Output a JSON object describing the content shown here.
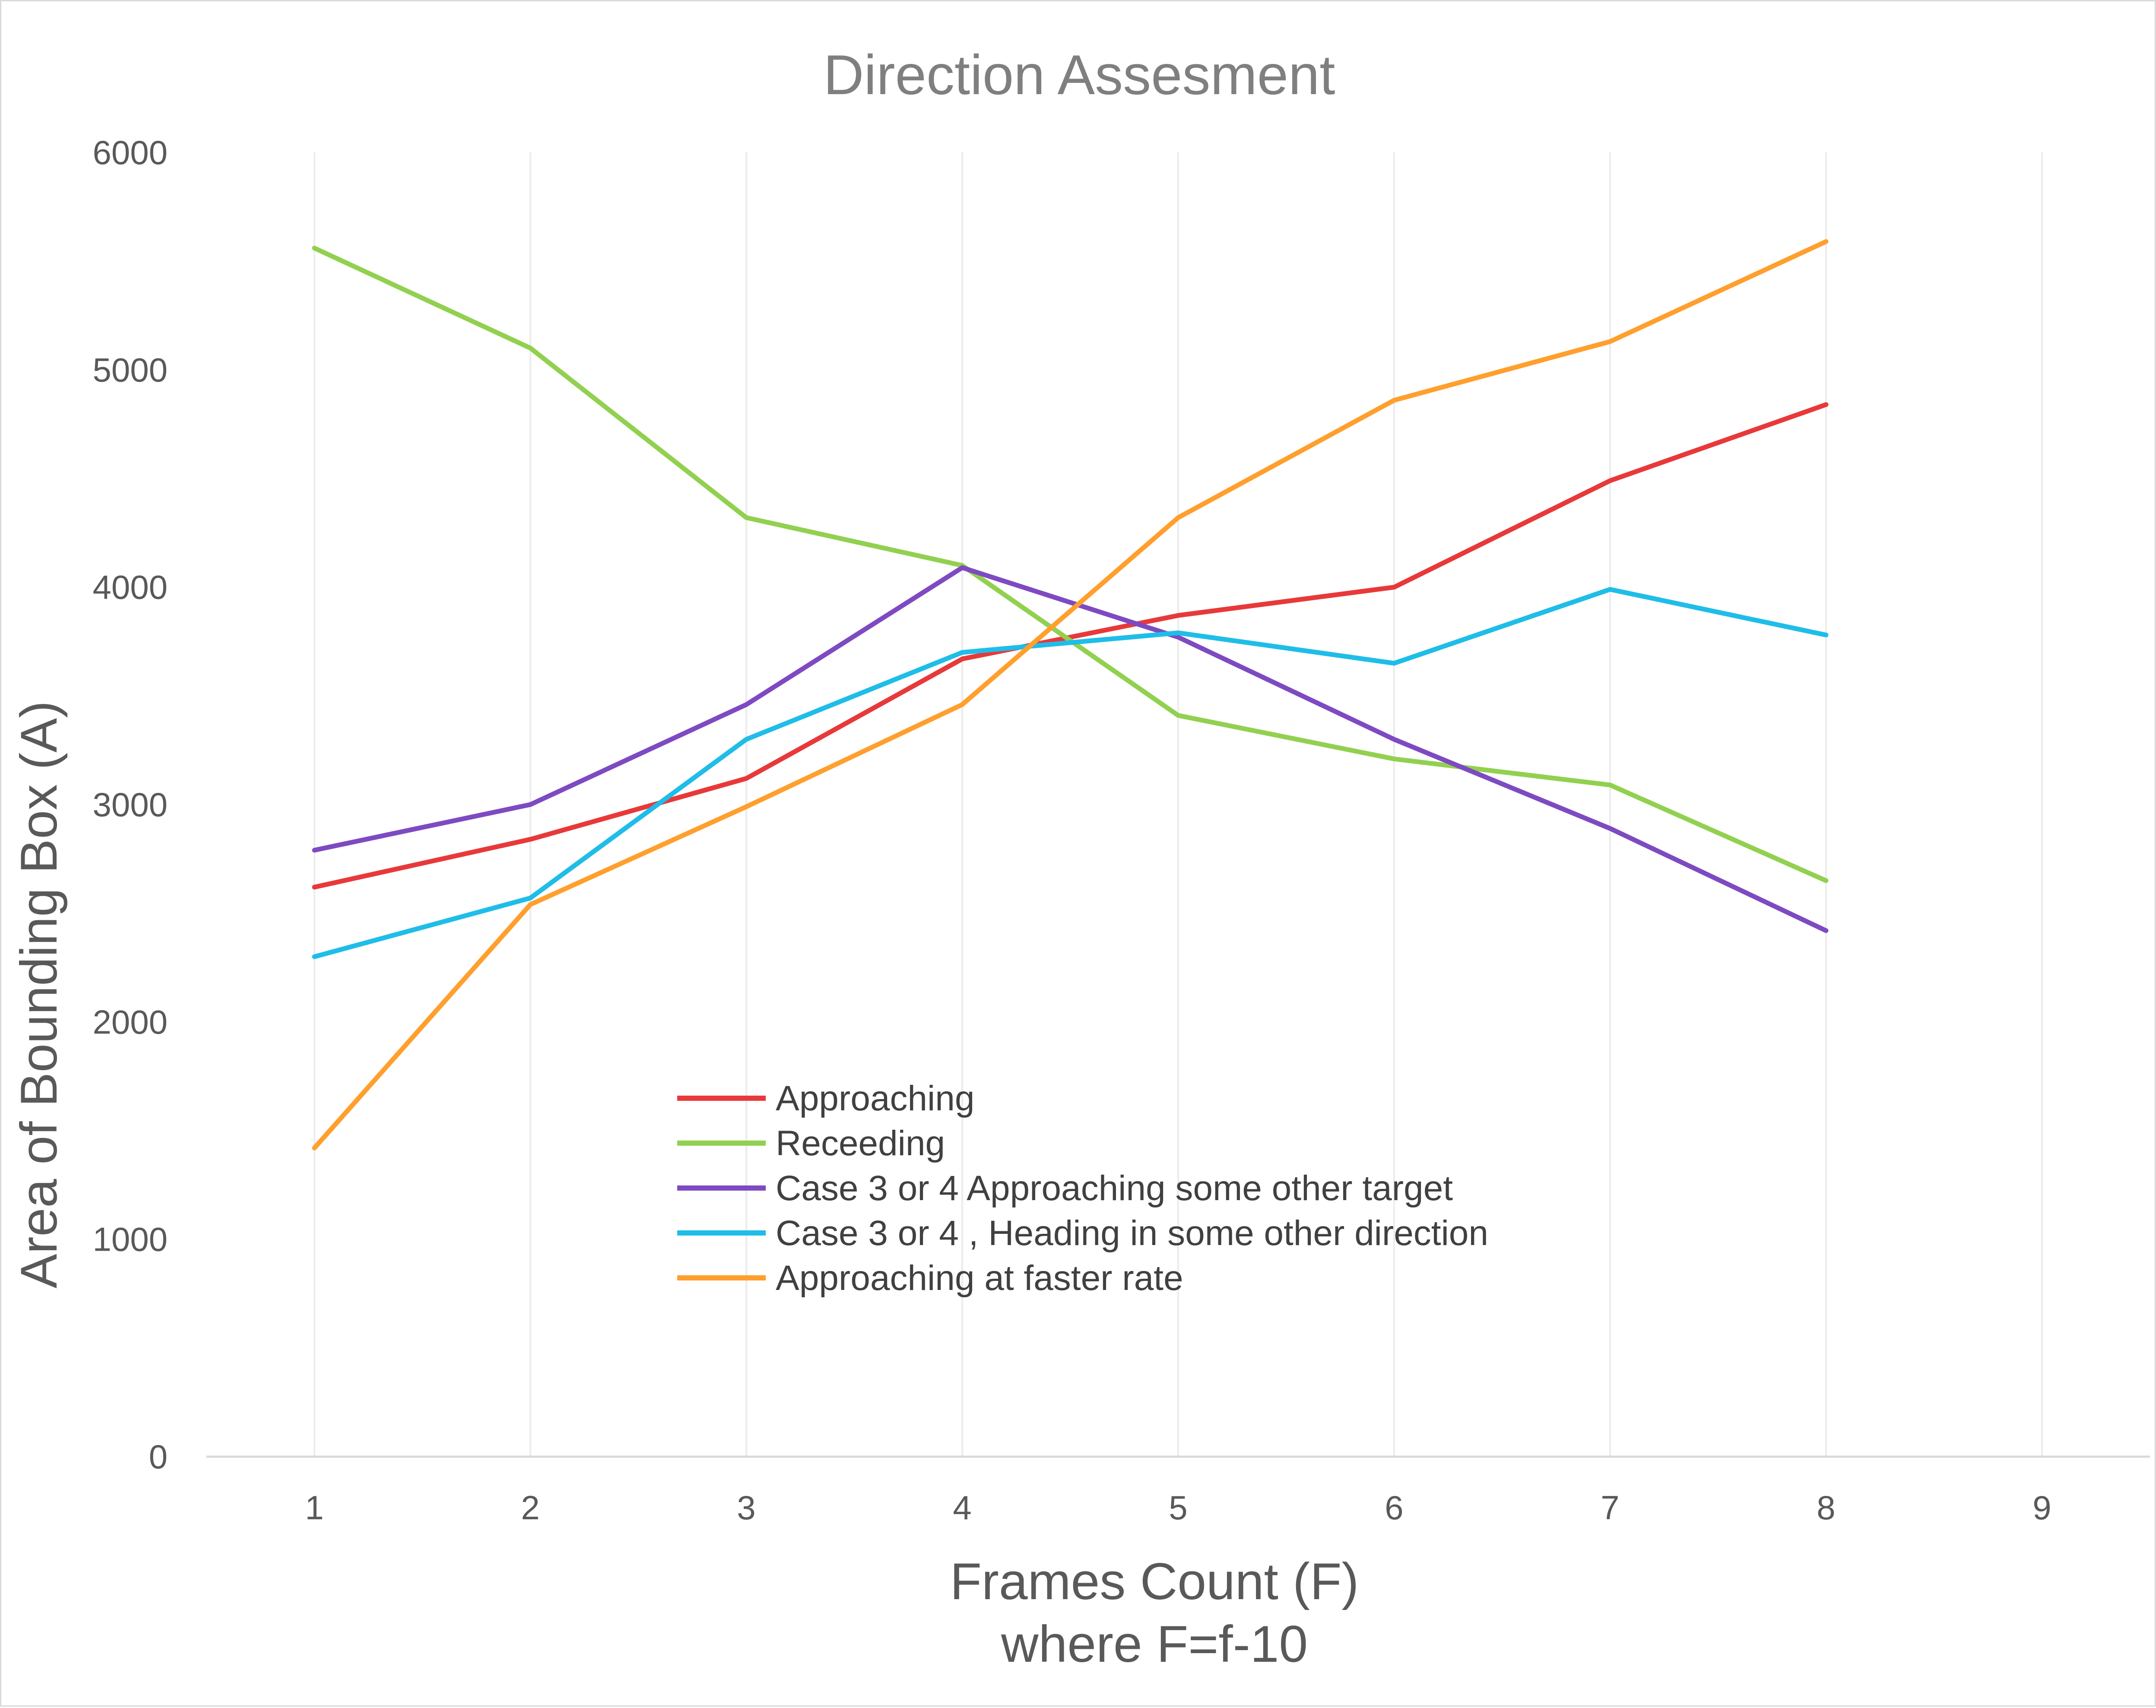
{
  "chart_data": {
    "type": "line",
    "title": "Direction Assesment",
    "xlabel": "Frames Count (F)",
    "xlabel_line2": "where F=f-10",
    "ylabel": "Area of Bounding Box (A)",
    "x": [
      1,
      2,
      3,
      4,
      5,
      6,
      7,
      8
    ],
    "x_ticks": [
      1,
      2,
      3,
      4,
      5,
      6,
      7,
      8,
      9
    ],
    "xlim": [
      0.5,
      9.5
    ],
    "ylim": [
      0,
      6000
    ],
    "y_ticks": [
      0,
      1000,
      2000,
      3000,
      4000,
      5000,
      6000
    ],
    "grid": "vertical",
    "legend_position": "inside-bottom-center",
    "series": [
      {
        "name": "Approaching",
        "color": "#e8393a",
        "values": [
          2620,
          2840,
          3120,
          3670,
          3870,
          4000,
          4490,
          4840
        ]
      },
      {
        "name": "Receeding",
        "color": "#92d050",
        "values": [
          5560,
          5100,
          4320,
          4100,
          3410,
          3210,
          3090,
          2650
        ]
      },
      {
        "name": "Case 3 or 4 Approaching some other target",
        "color": "#7e4ac1",
        "values": [
          2790,
          3000,
          3460,
          4090,
          3770,
          3300,
          2890,
          2420
        ]
      },
      {
        "name": "Case 3 or 4 , Heading in some other direction",
        "color": "#1fbde8",
        "values": [
          2300,
          2570,
          3300,
          3700,
          3790,
          3650,
          3990,
          3780
        ]
      },
      {
        "name": "Approaching at faster rate",
        "color": "#ff9f2d",
        "values": [
          1420,
          2540,
          2990,
          3460,
          4320,
          4860,
          5130,
          5590
        ]
      }
    ]
  }
}
